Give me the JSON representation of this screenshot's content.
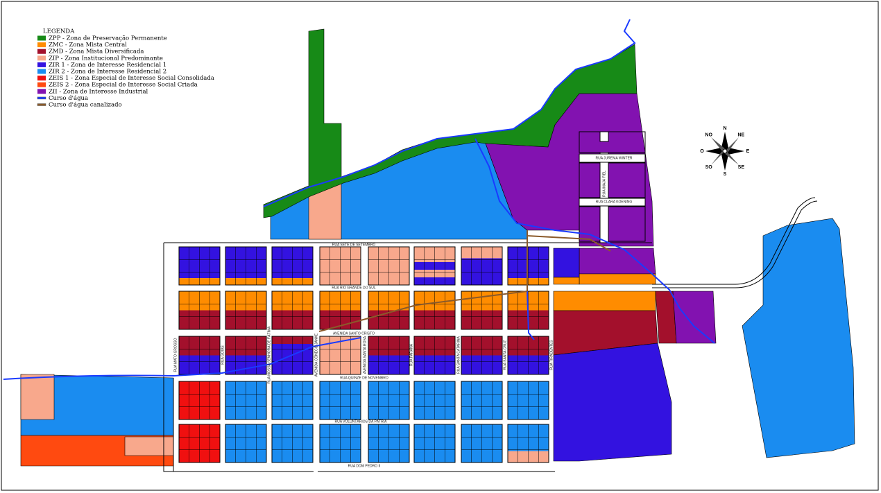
{
  "legend": {
    "title": "LEGENDA",
    "items": [
      {
        "label": "ZPP - Zona de Preservação Permanente",
        "color": "#178a17"
      },
      {
        "label": "ZMC - Zona Mista Central",
        "color": "#ff8c00"
      },
      {
        "label": "ZMD - Zona Mista Diversificada",
        "color": "#a3102c"
      },
      {
        "label": "ZIP - Zona Institucional Predominante",
        "color": "#f8a88c"
      },
      {
        "label": "ZIR 1 - Zona de Interesse Residencial 1",
        "color": "#3312e0"
      },
      {
        "label": "ZIR 2 - Zona de Interesse Residencial 2",
        "color": "#1a8cf0"
      },
      {
        "label": "ZEIS 1 - Zona Especial de Interesse Social Consolidada",
        "color": "#f01010"
      },
      {
        "label": "ZEIS 2 - Zona Especial de Interesse Social Criada",
        "color": "#ff4a10"
      },
      {
        "label": "ZII - Zona de Interesse Industrial",
        "color": "#8212b0"
      },
      {
        "label": "Curso d'água",
        "color": "#1a3aff"
      },
      {
        "label": "Curso d'água canalizado",
        "color": "#8a5a2a"
      }
    ]
  },
  "streets": [
    {
      "name": "RUA SETE DE SETEMBRO"
    },
    {
      "name": "RUA RIO GRANDE DO SUL"
    },
    {
      "name": "AVENIDA SANTO CRISTO"
    },
    {
      "name": "RUA QUINZE DE NOVEMBRO"
    },
    {
      "name": "RUA VOLUNTÁRIOS DA PÁTRIA"
    },
    {
      "name": "RUA DOM PEDRO II"
    },
    {
      "name": "RUA JUREMA WINTER"
    },
    {
      "name": "RUA CLARA KOENING"
    },
    {
      "name": "RUA INAJÁ FIEL"
    },
    {
      "name": "RUA MATO GROSSO"
    },
    {
      "name": "RUA GOIÁS"
    },
    {
      "name": "RUA NOSSA SENHORA DE FÁTIMA"
    },
    {
      "name": "AVENIDA CÔNEGO JANKE"
    },
    {
      "name": "AVENIDA SANTA ROSA"
    },
    {
      "name": "RUA PARANÁ"
    },
    {
      "name": "RUA SANTA CATARINA"
    },
    {
      "name": "RUA SANTA CRUZ"
    },
    {
      "name": "RUA TIRADENTES"
    }
  ],
  "compass": {
    "labels": [
      "N",
      "NE",
      "E",
      "SE",
      "S",
      "SO",
      "O",
      "NO"
    ]
  }
}
